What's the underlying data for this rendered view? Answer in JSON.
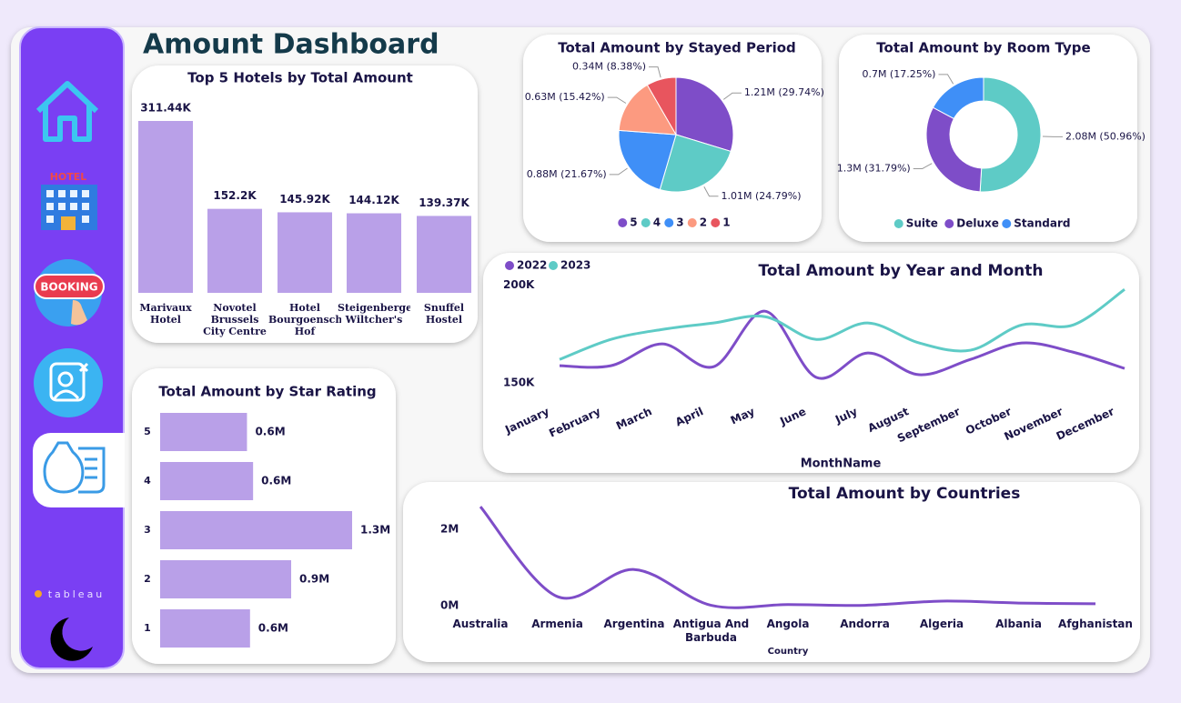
{
  "title": "Amount Dashboard",
  "sidebar": {
    "hotel_sign": "HOTEL",
    "booking_sign": "BOOKING",
    "brand": "tableau"
  },
  "chart_data": [
    {
      "type": "bar",
      "title": "Top 5 Hotels by Total Amount",
      "categories": [
        "Marivaux Hotel",
        "Novotel Brussels City Centre",
        "Hotel Bourgoensch Hof",
        "Steigenberger Wiltcher's",
        "Snuffel Hostel"
      ],
      "values": [
        311.44,
        152.2,
        145.92,
        144.12,
        139.37
      ],
      "value_labels": [
        "311.44K",
        "152.2K",
        "145.92K",
        "144.12K",
        "139.37K"
      ],
      "color": "#b9a0e8"
    },
    {
      "type": "pie",
      "title": "Total Amount by Stayed Period",
      "categories": [
        "5",
        "4",
        "3",
        "2",
        "1"
      ],
      "values": [
        1.21,
        1.01,
        0.88,
        0.63,
        0.34
      ],
      "value_labels": [
        "1.21M (29.74%)",
        "1.01M (24.79%)",
        "0.88M (21.67%)",
        "0.63M (15.42%)",
        "0.34M (8.38%)"
      ],
      "colors": [
        "#7e4dc8",
        "#5ecbc6",
        "#3f8ff7",
        "#fc9a80",
        "#e8555e"
      ]
    },
    {
      "type": "donut",
      "title": "Total Amount by Room Type",
      "categories": [
        "Suite",
        "Deluxe",
        "Standard"
      ],
      "values": [
        2.08,
        1.3,
        0.7
      ],
      "value_labels": [
        "2.08M (50.96%)",
        "1.3M (31.79%)",
        "0.7M (17.25%)"
      ],
      "colors": [
        "#5ecbc6",
        "#7e4dc8",
        "#3f8ff7"
      ]
    },
    {
      "type": "line",
      "title": "Total Amount by Year and Month",
      "x_label": "MonthName",
      "categories": [
        "January",
        "February",
        "March",
        "April",
        "May",
        "June",
        "July",
        "August",
        "September",
        "October",
        "November",
        "December"
      ],
      "series": [
        {
          "name": "2022",
          "color": "#7e4dc8",
          "values": [
            158.8,
            158.8,
            169.9,
            158.3,
            186.6,
            152.8,
            165.3,
            154.2,
            162.0,
            170.4,
            165.7,
            157.4
          ]
        },
        {
          "name": "2023",
          "color": "#5ecbc6",
          "values": [
            162.0,
            172.2,
            177.3,
            180.6,
            183.8,
            172.2,
            180.6,
            170.4,
            166.7,
            179.6,
            179.6,
            197.7
          ]
        }
      ],
      "ylim": [
        144,
        202
      ],
      "yticks": [
        {
          "value": 150,
          "label": "150K"
        },
        {
          "value": 200,
          "label": "200K"
        }
      ],
      "legend": "top-left"
    },
    {
      "type": "line",
      "title": "Total Amount by Countries",
      "x_label": "Country",
      "categories": [
        "Australia",
        "Armenia",
        "Argentina",
        "Antigua And Barbuda",
        "Angola",
        "Andorra",
        "Algeria",
        "Albania",
        "Afghanistan"
      ],
      "series": [
        {
          "color": "#7e4dc8",
          "values": [
            2.6,
            0.24,
            0.95,
            0.01,
            0.03,
            0.01,
            0.12,
            0.07,
            0.05
          ]
        }
      ],
      "ylim": [
        0,
        2.65
      ],
      "yticks": [
        {
          "value": 0,
          "label": "0M"
        },
        {
          "value": 2,
          "label": "2M"
        }
      ]
    },
    {
      "type": "hbar",
      "title": "Total Amount by Star Rating",
      "categories": [
        "5",
        "4",
        "3",
        "2",
        "1"
      ],
      "values": [
        0.57,
        0.61,
        1.26,
        0.86,
        0.59
      ],
      "value_labels": [
        "0.6M",
        "0.6M",
        "1.3M",
        "0.9M",
        "0.6M"
      ],
      "color": "#b9a0e8"
    }
  ]
}
